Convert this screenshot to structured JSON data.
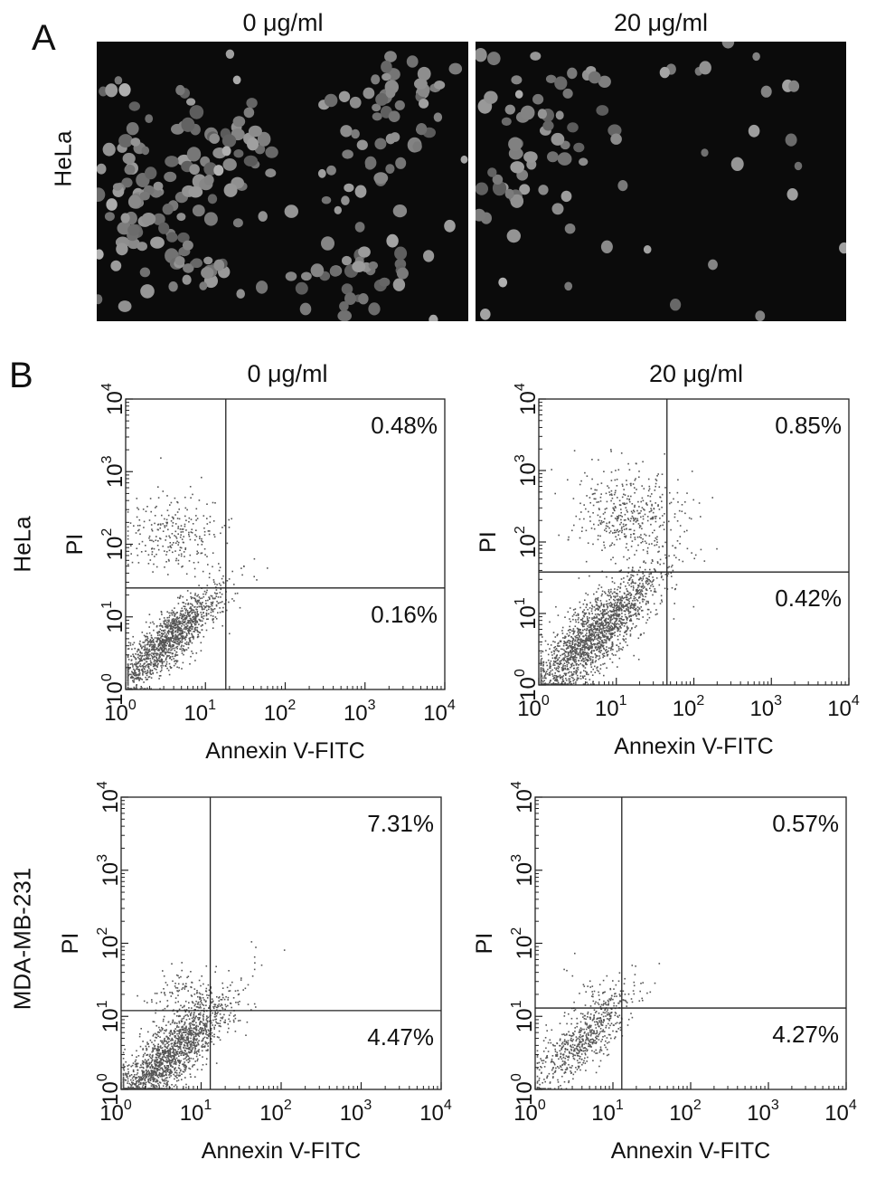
{
  "panels": {
    "A": {
      "letter": "A",
      "columns": [
        "0 μg/ml",
        "20 μg/ml"
      ],
      "row_label": "HeLa"
    },
    "B": {
      "letter": "B",
      "columns": [
        "0 μg/ml",
        "20 μg/ml"
      ],
      "row_labels": [
        "HeLa",
        "MDA-MB-231"
      ]
    }
  },
  "chart_data": [
    {
      "type": "scatter",
      "title": "0 μg/ml",
      "row": "HeLa",
      "xlabel": "Annexin V-FITC",
      "ylabel": "PI",
      "xscale": "log",
      "yscale": "log",
      "xlim": [
        1,
        10000
      ],
      "ylim": [
        1,
        10000
      ],
      "x_ticks": [
        "10^0",
        "10^1",
        "10^2",
        "10^3",
        "10^4"
      ],
      "y_ticks": [
        "10^0",
        "10^1",
        "10^2",
        "10^3",
        "10^4"
      ],
      "gate_x": 18,
      "gate_y": 25,
      "quadrant_labels": {
        "upper_right": "0.48%",
        "lower_right": "0.16%"
      },
      "population": {
        "main": {
          "x_center": 3.5,
          "y_center": 5,
          "spread": 0.32,
          "n": 1400
        },
        "upper_left": {
          "x_center": 4,
          "y_center": 150,
          "spread": 0.3,
          "n": 260
        }
      }
    },
    {
      "type": "scatter",
      "title": "20 μg/ml",
      "row": "HeLa",
      "xlabel": "Annexin V-FITC",
      "ylabel": "PI",
      "xscale": "log",
      "yscale": "log",
      "xlim": [
        1,
        10000
      ],
      "ylim": [
        1,
        10000
      ],
      "x_ticks": [
        "10^0",
        "10^1",
        "10^2",
        "10^3",
        "10^4"
      ],
      "y_ticks": [
        "10^0",
        "10^1",
        "10^2",
        "10^3",
        "10^4"
      ],
      "gate_x": 45,
      "gate_y": 38,
      "quadrant_labels": {
        "upper_right": "0.85%",
        "lower_right": "0.42%"
      },
      "population": {
        "main": {
          "x_center": 5,
          "y_center": 5,
          "spread": 0.42,
          "n": 1900
        },
        "upper_left": {
          "x_center": 15,
          "y_center": 250,
          "spread": 0.35,
          "n": 420
        }
      }
    },
    {
      "type": "scatter",
      "title": "0 μg/ml",
      "row": "MDA-MB-231",
      "xlabel": "Annexin V-FITC",
      "ylabel": "PI",
      "xscale": "log",
      "yscale": "log",
      "xlim": [
        1,
        10000
      ],
      "ylim": [
        1,
        10000
      ],
      "x_ticks": [
        "10^0",
        "10^1",
        "10^2",
        "10^3",
        "10^4"
      ],
      "y_ticks": [
        "10^0",
        "10^1",
        "10^2",
        "10^3",
        "10^4"
      ],
      "gate_x": 13,
      "gate_y": 12,
      "quadrant_labels": {
        "upper_right": "7.31%",
        "lower_right": "4.47%"
      },
      "population": {
        "main": {
          "x_center": 4,
          "y_center": 3,
          "spread": 0.38,
          "n": 1700
        },
        "upper_left": {
          "x_center": 6,
          "y_center": 20,
          "spread": 0.2,
          "n": 120
        }
      }
    },
    {
      "type": "scatter",
      "title": "20 μg/ml",
      "row": "MDA-MB-231",
      "xlabel": "Annexin V-FITC",
      "ylabel": "PI",
      "xscale": "log",
      "yscale": "log",
      "xlim": [
        1,
        10000
      ],
      "ylim": [
        1,
        10000
      ],
      "x_ticks": [
        "10^0",
        "10^1",
        "10^2",
        "10^3",
        "10^4"
      ],
      "y_ticks": [
        "10^0",
        "10^1",
        "10^2",
        "10^3",
        "10^4"
      ],
      "gate_x": 13,
      "gate_y": 13,
      "quadrant_labels": {
        "upper_right": "0.57%",
        "lower_right": "4.27%"
      },
      "population": {
        "main": {
          "x_center": 4,
          "y_center": 5,
          "spread": 0.34,
          "n": 650
        },
        "upper_left": {
          "x_center": 6,
          "y_center": 20,
          "spread": 0.18,
          "n": 40
        }
      }
    }
  ]
}
